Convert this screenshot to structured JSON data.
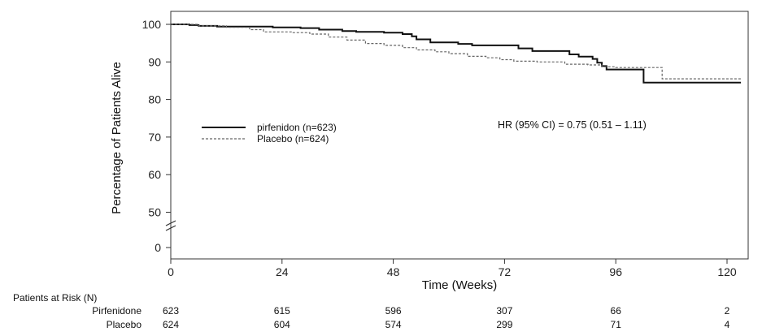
{
  "chart_data": {
    "type": "line",
    "ylabel": "Percentage of Patients Alive",
    "xlabel": "Time (Weeks)",
    "x_ticks": [
      0,
      24,
      48,
      72,
      96,
      120
    ],
    "x_tick_labels": [
      "0",
      "24",
      "48",
      "72",
      "96",
      "120"
    ],
    "xlim": [
      0,
      123
    ],
    "y_ticks": [
      0,
      50,
      60,
      70,
      80,
      90,
      100
    ],
    "y_tick_labels": [
      "0",
      "50",
      "60",
      "70",
      "80",
      "90",
      "100"
    ],
    "y_axis_break": true,
    "grid": false,
    "legend_position": "left-middle",
    "series": [
      {
        "name": "pirfenidon  (n=623)",
        "line_style": "solid",
        "color": "#111111",
        "points": [
          [
            0,
            100
          ],
          [
            4,
            99.8
          ],
          [
            6,
            99.6
          ],
          [
            10,
            99.4
          ],
          [
            18,
            99.4
          ],
          [
            22,
            99.2
          ],
          [
            28,
            99.0
          ],
          [
            32,
            98.6
          ],
          [
            37,
            98.2
          ],
          [
            40,
            98.0
          ],
          [
            46,
            97.8
          ],
          [
            50,
            97.4
          ],
          [
            52,
            96.8
          ],
          [
            53,
            96.0
          ],
          [
            56,
            95.2
          ],
          [
            62,
            94.8
          ],
          [
            65,
            94.4
          ],
          [
            72,
            94.4
          ],
          [
            75,
            93.6
          ],
          [
            78,
            92.9
          ],
          [
            84,
            92.9
          ],
          [
            86,
            92.0
          ],
          [
            88,
            91.4
          ],
          [
            91,
            90.8
          ],
          [
            92,
            89.8
          ],
          [
            93,
            88.9
          ],
          [
            94,
            88.0
          ],
          [
            98,
            88.0
          ],
          [
            101,
            88.0
          ],
          [
            102,
            84.5
          ],
          [
            106,
            84.5
          ],
          [
            123,
            84.5
          ]
        ]
      },
      {
        "name": "Placebo (n=624)",
        "line_style": "dashed",
        "color": "#666666",
        "points": [
          [
            0,
            100
          ],
          [
            6,
            99.6
          ],
          [
            12,
            99.2
          ],
          [
            17,
            98.6
          ],
          [
            20,
            98.0
          ],
          [
            26,
            97.8
          ],
          [
            30,
            97.4
          ],
          [
            34,
            96.6
          ],
          [
            38,
            95.8
          ],
          [
            42,
            94.9
          ],
          [
            46,
            94.4
          ],
          [
            50,
            93.8
          ],
          [
            53,
            93.2
          ],
          [
            57,
            92.7
          ],
          [
            60,
            92.2
          ],
          [
            64,
            91.5
          ],
          [
            68,
            91.1
          ],
          [
            71,
            90.6
          ],
          [
            74,
            90.2
          ],
          [
            79,
            90.0
          ],
          [
            85,
            89.4
          ],
          [
            90,
            89.2
          ],
          [
            93,
            88.7
          ],
          [
            96,
            88.5
          ],
          [
            103,
            88.5
          ],
          [
            105,
            88.5
          ],
          [
            106,
            85.5
          ],
          [
            123,
            85.5
          ]
        ]
      }
    ],
    "annotation": "HR (95% CI) = 0.75 (0.51 – 1.11)",
    "risk_table": {
      "title": "Patients at Risk (N)",
      "rows": [
        {
          "label": "Pirfenidone",
          "values": [
            "623",
            "615",
            "596",
            "307",
            "66",
            "2"
          ]
        },
        {
          "label": "Placebo",
          "values": [
            "624",
            "604",
            "574",
            "299",
            "71",
            "4"
          ]
        }
      ]
    }
  }
}
